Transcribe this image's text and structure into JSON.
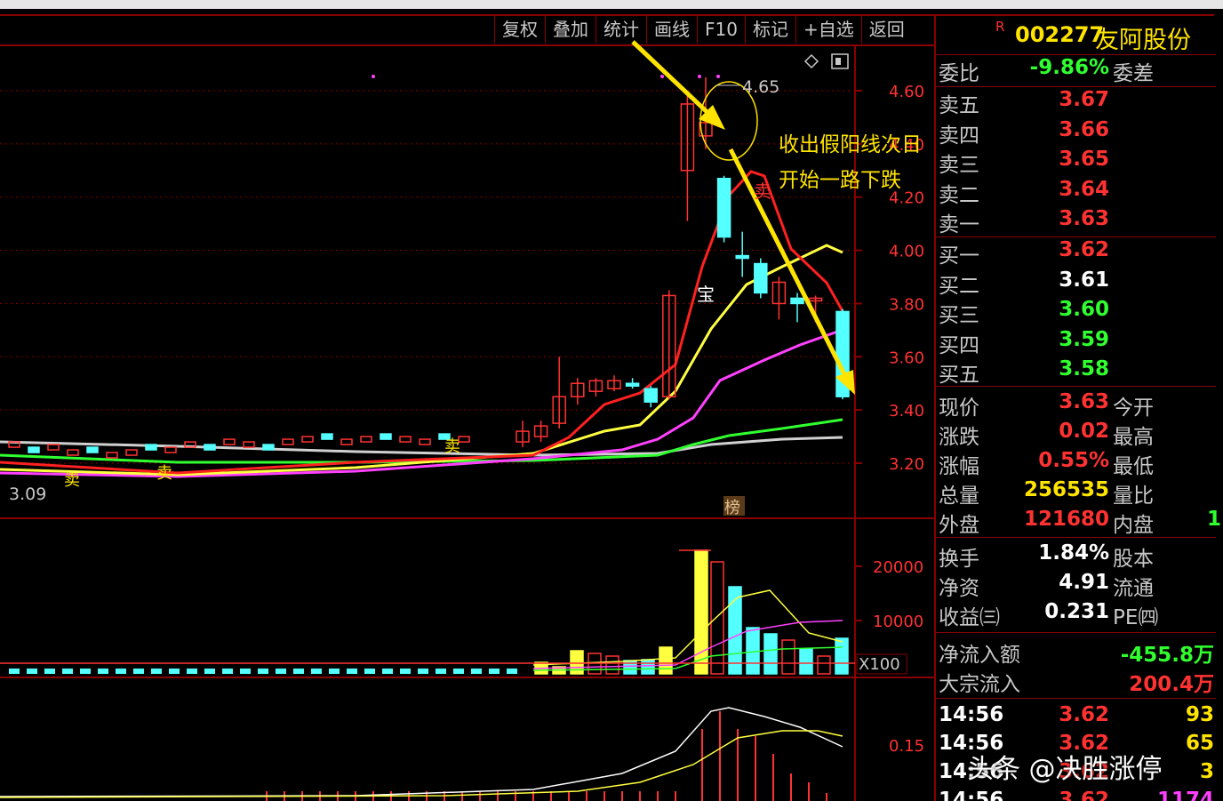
{
  "toolbar": {
    "buttons": [
      "复权",
      "叠加",
      "统计",
      "画线",
      "F10",
      "标记",
      "+自选",
      "返回"
    ]
  },
  "stock": {
    "flag": "R",
    "code": "002277",
    "name": "友阿股份"
  },
  "weibi": {
    "label": "委比",
    "value": "-9.86%",
    "label2": "委差"
  },
  "sell_orders": [
    {
      "label": "卖五",
      "price": "3.67"
    },
    {
      "label": "卖四",
      "price": "3.66"
    },
    {
      "label": "卖三",
      "price": "3.65"
    },
    {
      "label": "卖二",
      "price": "3.64"
    },
    {
      "label": "卖一",
      "price": "3.63"
    }
  ],
  "buy_orders": [
    {
      "label": "买一",
      "price": "3.62"
    },
    {
      "label": "买二",
      "price": "3.61"
    },
    {
      "label": "买三",
      "price": "3.60"
    },
    {
      "label": "买四",
      "price": "3.59"
    },
    {
      "label": "买五",
      "price": "3.58"
    }
  ],
  "quote": [
    {
      "label": "现价",
      "value": "3.63",
      "label2": "今开"
    },
    {
      "label": "涨跌",
      "value": "0.02",
      "label2": "最高"
    },
    {
      "label": "涨幅",
      "value": "0.55%",
      "label2": "最低"
    },
    {
      "label": "总量",
      "value": "256535",
      "label2": "量比"
    },
    {
      "label": "外盘",
      "value": "121680",
      "label2": "内盘",
      "extra": "1"
    }
  ],
  "fundamentals": [
    {
      "label": "换手",
      "value": "1.84%",
      "label2": "股本"
    },
    {
      "label": "净资",
      "value": "4.91",
      "label2": "流通"
    },
    {
      "label": "收益㈢",
      "value": "0.231",
      "label2": "PE㈣"
    }
  ],
  "flows": [
    {
      "label": "净流入额",
      "value": "-455.8万"
    },
    {
      "label": "大宗流入",
      "value": "200.4万"
    }
  ],
  "ticks": [
    {
      "time": "14:56",
      "price": "3.62",
      "vol": "93"
    },
    {
      "time": "14:56",
      "price": "3.62",
      "vol": "65"
    },
    {
      "time": "14:56",
      "price": "3.62",
      "vol": "3"
    },
    {
      "time": "14:56",
      "price": "3.62",
      "vol": "1174"
    }
  ],
  "price_axis": [
    "4.60",
    "4.40",
    "4.20",
    "4.00",
    "3.80",
    "3.60",
    "3.40",
    "3.20"
  ],
  "volume_axis": [
    "20000",
    "10000"
  ],
  "volume_unit": "X100",
  "indicator_axis": [
    "0.15"
  ],
  "price_markers": {
    "high": "4.65",
    "low": "3.09"
  },
  "chart_markers": {
    "sell": "卖",
    "treasure": "宝",
    "list": "榜"
  },
  "annotation": [
    "收出假阳线次日",
    "开始一路下跌"
  ],
  "watermark": "头条 @决胜涨停",
  "colors": {
    "background": "#000000",
    "up": "#ff3232",
    "down": "#54ffff",
    "ma5": "#ff2020",
    "ma10": "#ffff40",
    "ma20": "#ff40ff",
    "ma60": "#30ff30",
    "ma120": "#d0d0d0",
    "frame": "#8a0000",
    "annotation": "#ffe400"
  },
  "chart_data": {
    "type": "candlestick",
    "y_range": [
      3.05,
      4.7
    ],
    "candles_recent": [
      {
        "o": 3.28,
        "c": 3.32,
        "h": 3.36,
        "l": 3.26
      },
      {
        "o": 3.3,
        "c": 3.34,
        "h": 3.36,
        "l": 3.28
      },
      {
        "o": 3.35,
        "c": 3.45,
        "h": 3.6,
        "l": 3.33
      },
      {
        "o": 3.45,
        "c": 3.5,
        "h": 3.52,
        "l": 3.42
      },
      {
        "o": 3.47,
        "c": 3.51,
        "h": 3.52,
        "l": 3.45
      },
      {
        "o": 3.48,
        "c": 3.51,
        "h": 3.53,
        "l": 3.47
      },
      {
        "o": 3.5,
        "c": 3.49,
        "h": 3.52,
        "l": 3.48
      },
      {
        "o": 3.48,
        "c": 3.43,
        "h": 3.49,
        "l": 3.41
      },
      {
        "o": 3.45,
        "c": 3.83,
        "h": 3.85,
        "l": 3.44
      },
      {
        "o": 4.3,
        "c": 4.55,
        "h": 4.6,
        "l": 4.11
      },
      {
        "o": 4.43,
        "c": 4.48,
        "h": 4.65,
        "l": 4.38
      },
      {
        "o": 4.27,
        "c": 4.05,
        "h": 4.28,
        "l": 4.03
      },
      {
        "o": 3.98,
        "c": 3.97,
        "h": 4.07,
        "l": 3.9
      },
      {
        "o": 3.95,
        "c": 3.84,
        "h": 3.97,
        "l": 3.82
      },
      {
        "o": 3.8,
        "c": 3.88,
        "h": 3.9,
        "l": 3.74
      },
      {
        "o": 3.82,
        "c": 3.8,
        "h": 3.84,
        "l": 3.73
      },
      {
        "o": 3.81,
        "c": 3.82,
        "h": 3.83,
        "l": 3.73
      },
      {
        "o": 3.77,
        "c": 3.45,
        "h": 3.78,
        "l": 3.44
      }
    ]
  }
}
